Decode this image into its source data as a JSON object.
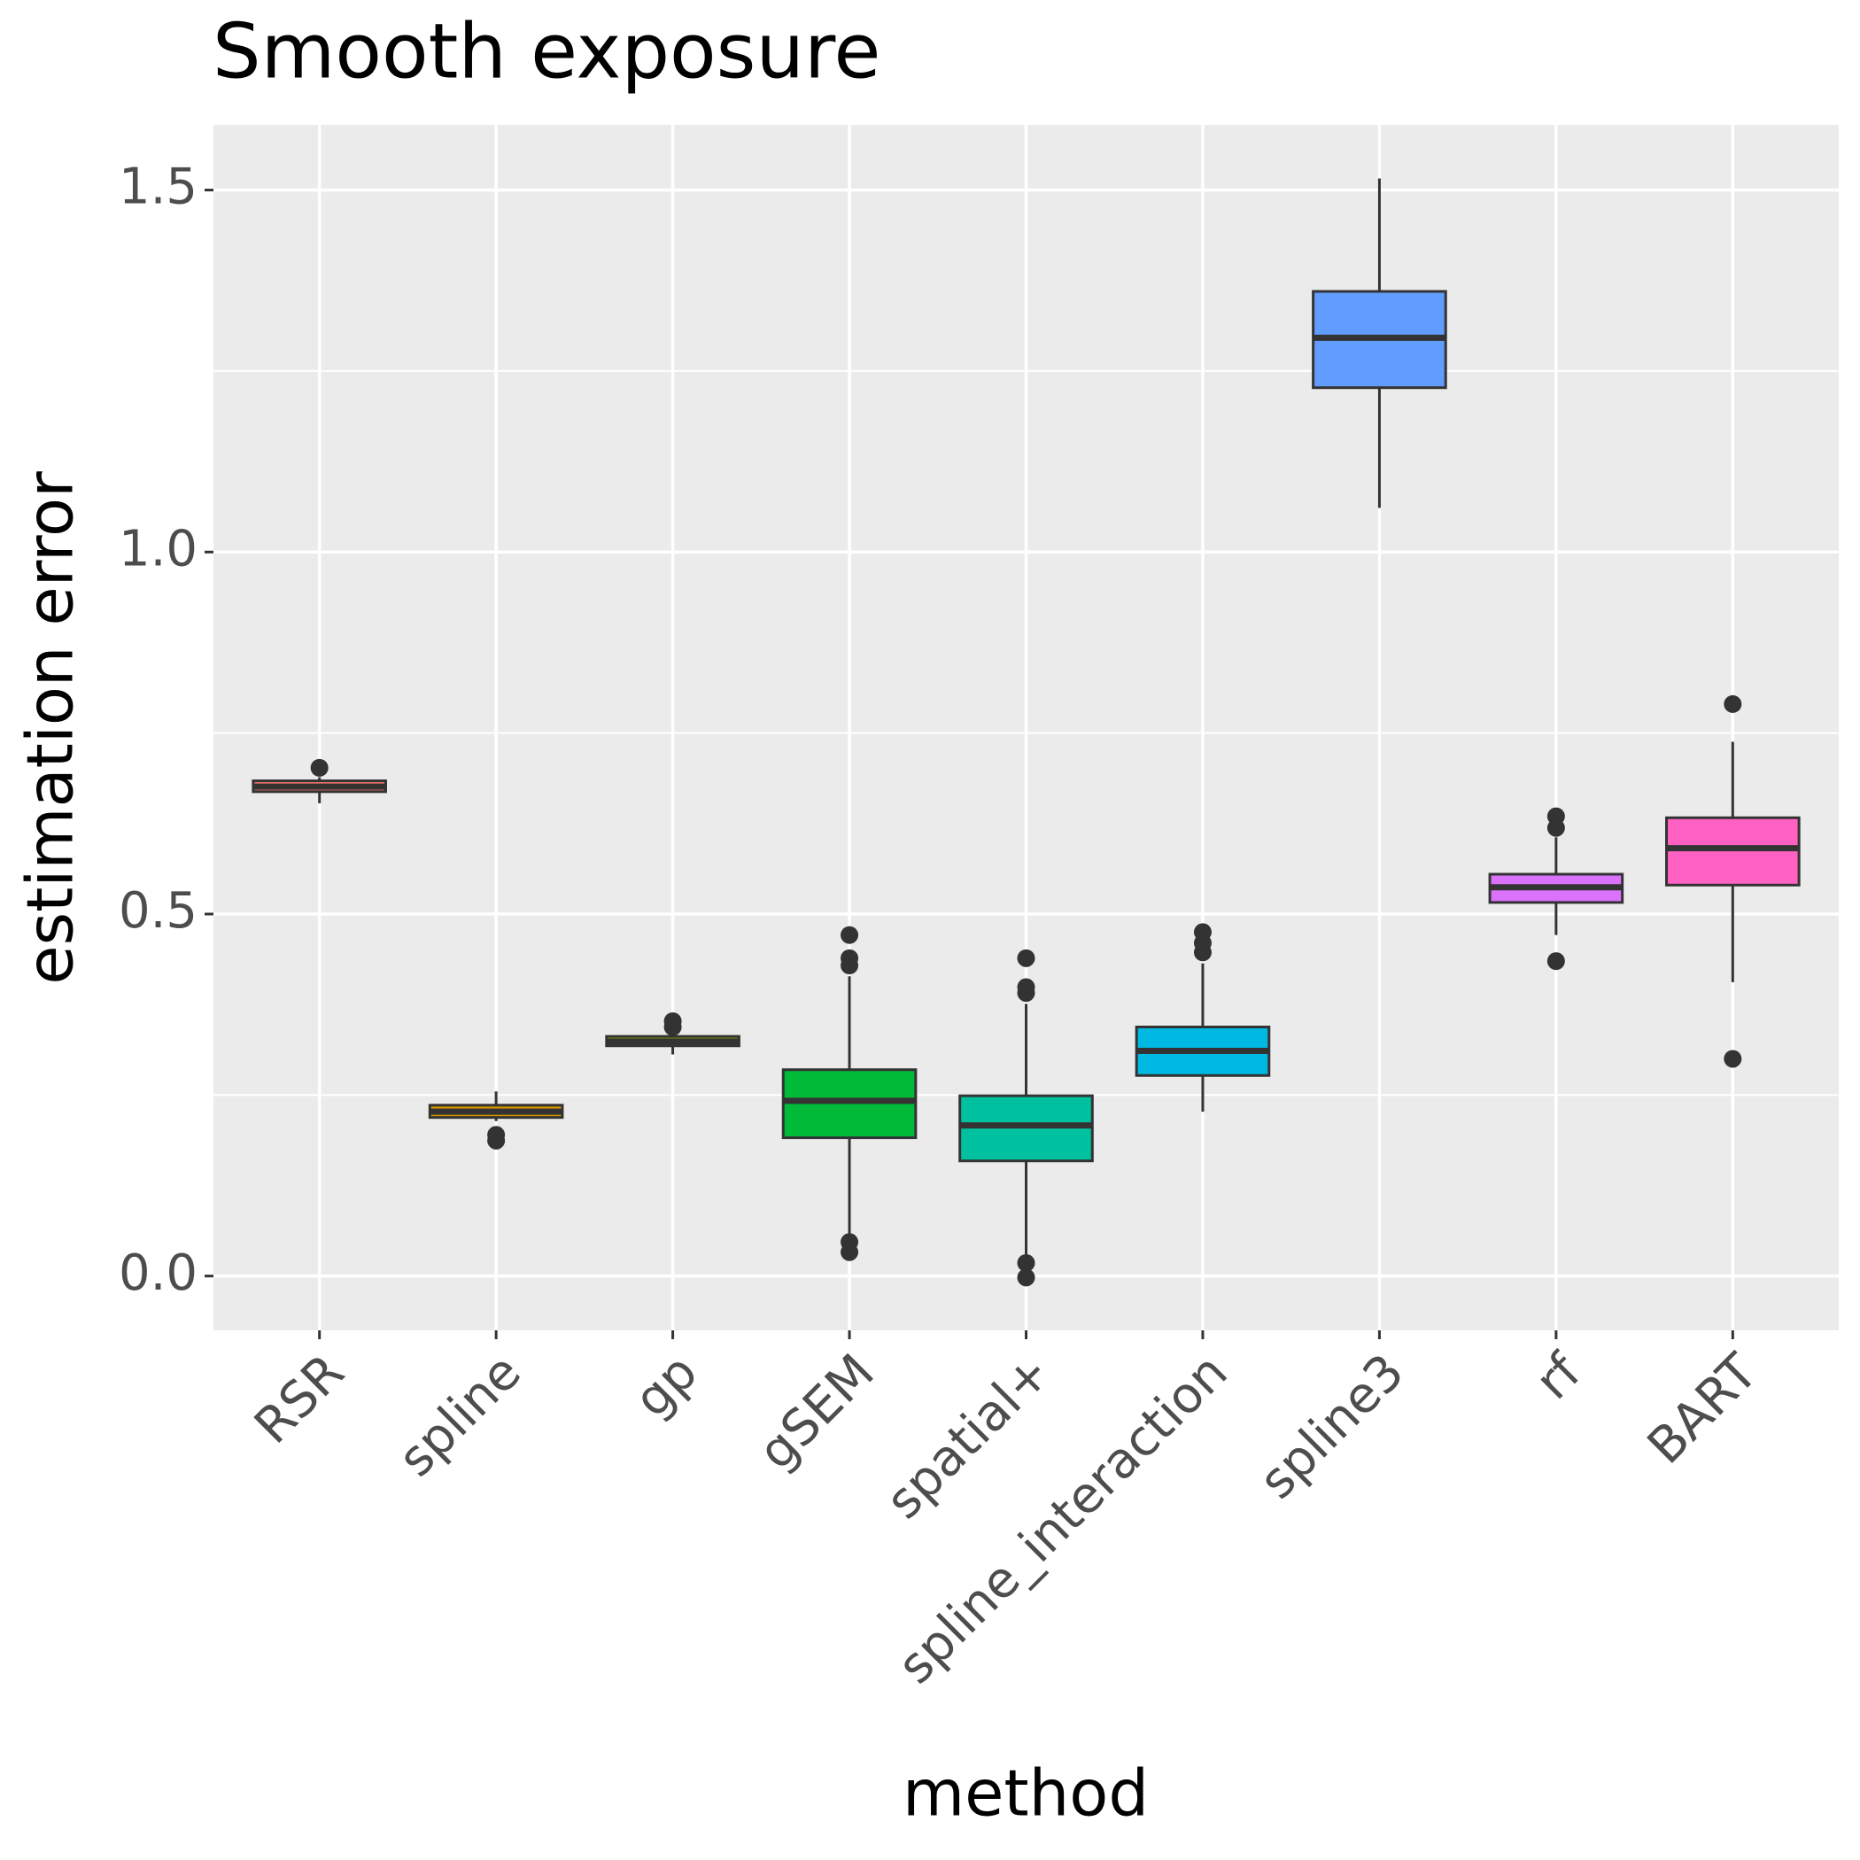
{
  "chart_data": {
    "type": "boxplot",
    "title": "Smooth exposure",
    "x_label": "method",
    "y_label": "estimation error",
    "categories": [
      "RSR",
      "spline",
      "gp",
      "gSEM",
      "spatial+",
      "spline_interaction",
      "spline3",
      "rf",
      "BART"
    ],
    "colors": [
      "#F8766D",
      "#D39200",
      "#93AA00",
      "#00BA38",
      "#00C19F",
      "#00B9E3",
      "#619CFF",
      "#DB72FB",
      "#FF61C3"
    ],
    "boxes": [
      {
        "whisker_low": 0.653,
        "q1": 0.669,
        "median": 0.676,
        "q3": 0.684,
        "whisker_high": 0.689,
        "outliers": [
          0.702
        ]
      },
      {
        "whisker_low": 0.214,
        "q1": 0.219,
        "median": 0.227,
        "q3": 0.236,
        "whisker_high": 0.255,
        "outliers": [
          0.195,
          0.187
        ]
      },
      {
        "whisker_low": 0.306,
        "q1": 0.318,
        "median": 0.324,
        "q3": 0.331,
        "whisker_high": 0.337,
        "outliers": [
          0.352,
          0.344
        ]
      },
      {
        "whisker_low": 0.054,
        "q1": 0.191,
        "median": 0.242,
        "q3": 0.285,
        "whisker_high": 0.414,
        "outliers": [
          0.471,
          0.439,
          0.429,
          0.047,
          0.033
        ]
      },
      {
        "whisker_low": 0.02,
        "q1": 0.159,
        "median": 0.208,
        "q3": 0.249,
        "whisker_high": 0.376,
        "outliers": [
          0.439,
          0.399,
          0.391,
          0.018,
          -0.002
        ]
      },
      {
        "whisker_low": 0.227,
        "q1": 0.277,
        "median": 0.311,
        "q3": 0.344,
        "whisker_high": 0.432,
        "outliers": [
          0.475,
          0.46,
          0.447
        ]
      },
      {
        "whisker_low": 1.061,
        "q1": 1.227,
        "median": 1.296,
        "q3": 1.36,
        "whisker_high": 1.516,
        "outliers": []
      },
      {
        "whisker_low": 0.471,
        "q1": 0.516,
        "median": 0.537,
        "q3": 0.555,
        "whisker_high": 0.606,
        "outliers": [
          0.635,
          0.619,
          0.435
        ]
      },
      {
        "whisker_low": 0.406,
        "q1": 0.54,
        "median": 0.591,
        "q3": 0.633,
        "whisker_high": 0.738,
        "outliers": [
          0.79,
          0.3
        ]
      }
    ],
    "ylim": [
      -0.075,
      1.59
    ],
    "yticks": [
      {
        "value": 0,
        "label": "0.0"
      },
      0.5,
      {
        "value": 1,
        "label": "1.0"
      },
      1.5
    ],
    "minor_yticks": [
      0.25,
      0.75,
      1.25
    ],
    "grid": true
  }
}
